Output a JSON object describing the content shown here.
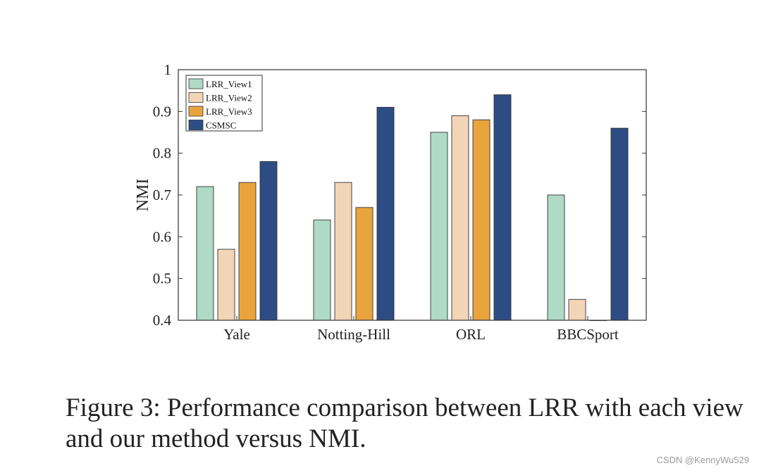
{
  "chart_data": {
    "type": "bar",
    "categories": [
      "Yale",
      "Notting-Hill",
      "ORL",
      "BBCSport"
    ],
    "series": [
      {
        "name": "LRR_View1",
        "color": "#afdac5",
        "values": [
          0.72,
          0.64,
          0.85,
          0.7
        ]
      },
      {
        "name": "LRR_View2",
        "color": "#f2d5b7",
        "values": [
          0.57,
          0.73,
          0.89,
          0.45
        ]
      },
      {
        "name": "LRR_View3",
        "color": "#eaa43e",
        "values": [
          0.73,
          0.67,
          0.88,
          0.4
        ]
      },
      {
        "name": "CSMSC",
        "color": "#2c4c83",
        "values": [
          0.78,
          0.91,
          0.94,
          0.86
        ]
      }
    ],
    "ylabel": "NMI",
    "xlabel": "",
    "ylim": [
      0.4,
      1
    ],
    "yticks": [
      "0.4",
      "0.5",
      "0.6",
      "0.7",
      "0.8",
      "0.9",
      "1"
    ],
    "legend_position": "top-left",
    "grid": false
  },
  "caption": "Figure 3: Performance comparison between LRR with each view and our method versus NMI.",
  "watermark": "CSDN @KennyWu529"
}
